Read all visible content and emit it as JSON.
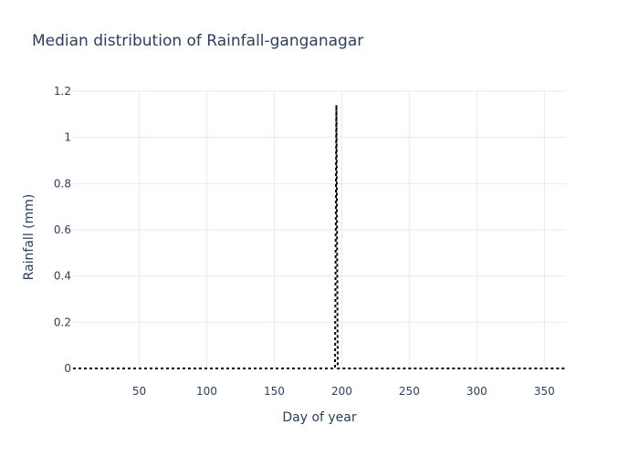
{
  "chart_data": {
    "type": "line",
    "title": "Median distribution of Rainfall-ganganagar",
    "xlabel": "Day of year",
    "ylabel": "Rainfall (mm)",
    "xlim": [
      1,
      366
    ],
    "ylim": [
      0,
      1.2
    ],
    "x_ticks": [
      50,
      100,
      150,
      200,
      250,
      300,
      350
    ],
    "y_ticks": [
      0,
      0.2,
      0.4,
      0.6,
      0.8,
      1,
      1.2
    ],
    "y_tick_labels": [
      "0",
      "0.2",
      "0.4",
      "0.6",
      "0.8",
      "1",
      "1.2"
    ],
    "grid": true,
    "line_color": "#000000",
    "line_style": "dotted",
    "series": [
      {
        "x": [
          1,
          195,
          196,
          197,
          366
        ],
        "y": [
          0,
          0,
          1.14,
          0,
          0
        ]
      }
    ]
  }
}
